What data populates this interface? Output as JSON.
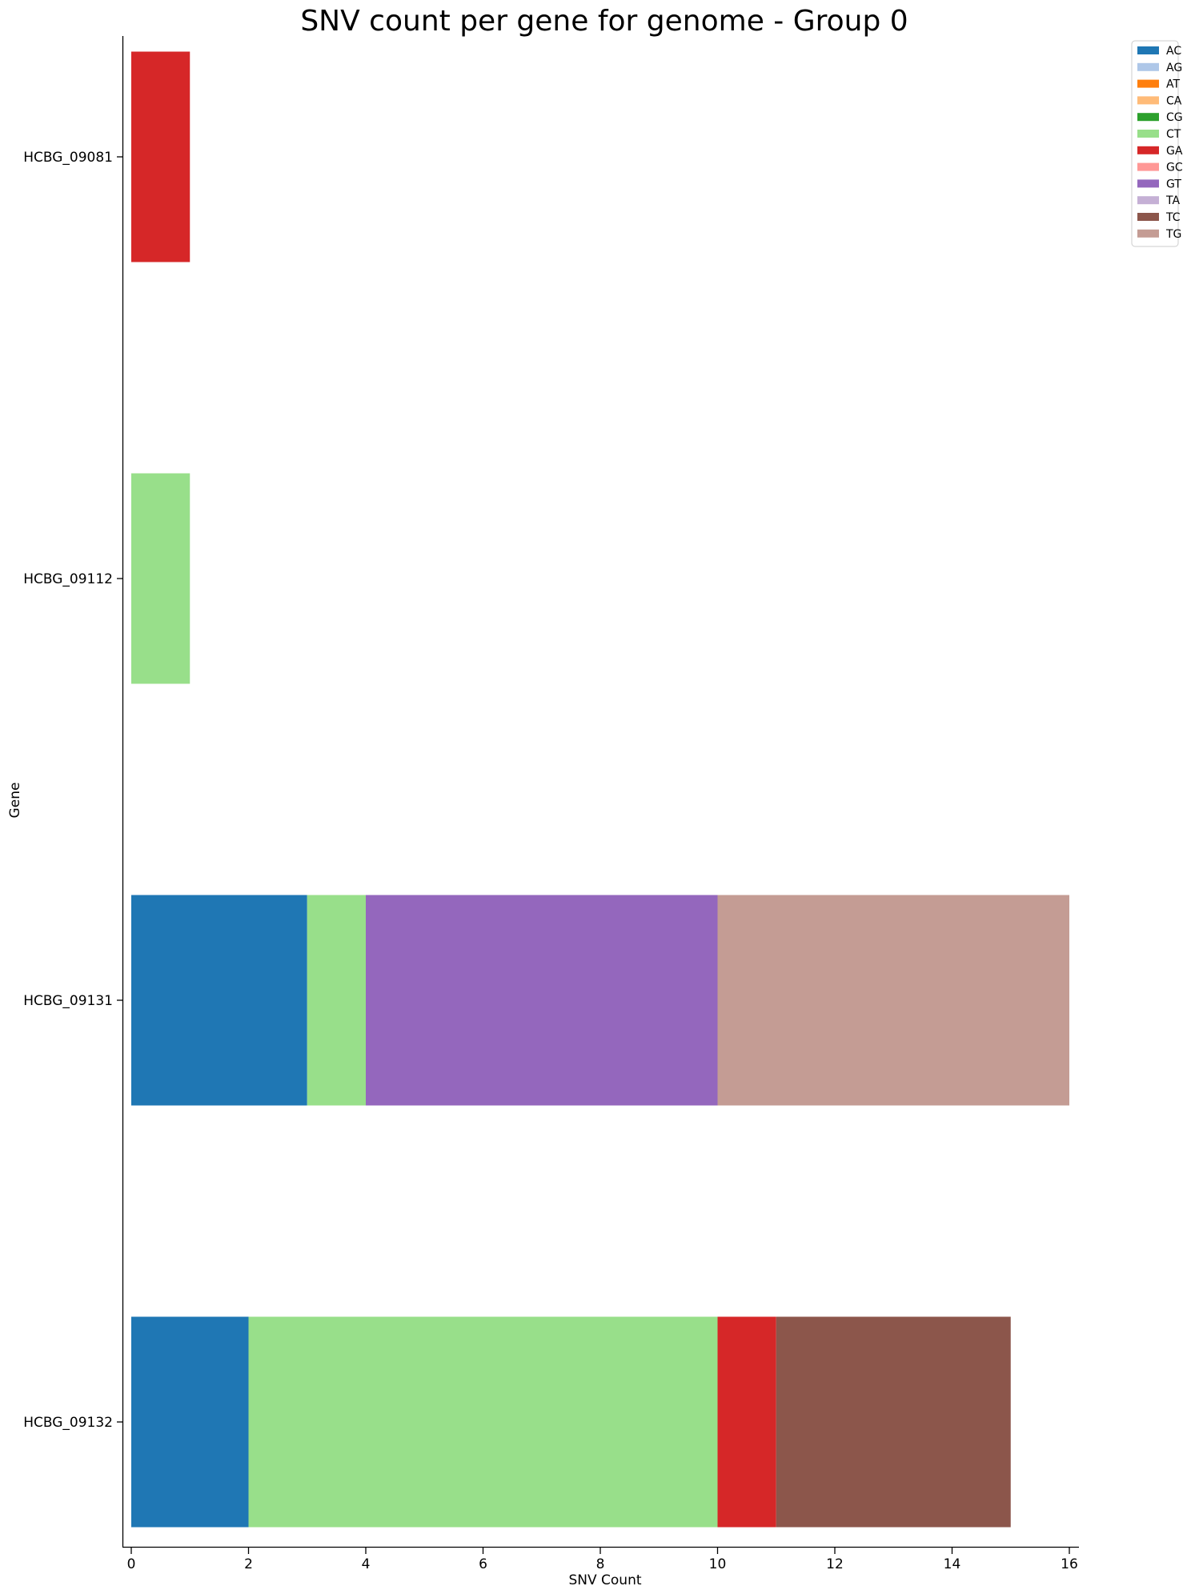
{
  "chart_data": {
    "type": "bar",
    "orientation": "horizontal",
    "stacked": true,
    "title": "SNV count per gene for genome - Group 0",
    "xlabel": "SNV Count",
    "ylabel": "Gene",
    "xlim": [
      0,
      16
    ],
    "xticks": [
      "0",
      "2",
      "4",
      "6",
      "8",
      "10",
      "12",
      "14",
      "16"
    ],
    "grid": false,
    "legend_position": "top-right, outside plot",
    "categories": [
      "HCBG_09081",
      "HCBG_09112",
      "HCBG_09131",
      "HCBG_09132"
    ],
    "series": [
      {
        "name": "AC",
        "color": "#1f77b4",
        "values": [
          0,
          0,
          3,
          2
        ]
      },
      {
        "name": "AG",
        "color": "#aec7e8",
        "values": [
          0,
          0,
          0,
          0
        ]
      },
      {
        "name": "AT",
        "color": "#ff7f0e",
        "values": [
          0,
          0,
          0,
          0
        ]
      },
      {
        "name": "CA",
        "color": "#ffbb78",
        "values": [
          0,
          0,
          0,
          0
        ]
      },
      {
        "name": "CG",
        "color": "#2ca02c",
        "values": [
          0,
          0,
          0,
          0
        ]
      },
      {
        "name": "CT",
        "color": "#98df8a",
        "values": [
          0,
          1,
          1,
          8
        ]
      },
      {
        "name": "GA",
        "color": "#d62728",
        "values": [
          1,
          0,
          0,
          1
        ]
      },
      {
        "name": "GC",
        "color": "#ff9896",
        "values": [
          0,
          0,
          0,
          0
        ]
      },
      {
        "name": "GT",
        "color": "#9467bd",
        "values": [
          0,
          0,
          6,
          0
        ]
      },
      {
        "name": "TA",
        "color": "#c5b0d5",
        "values": [
          0,
          0,
          0,
          0
        ]
      },
      {
        "name": "TC",
        "color": "#8c564b",
        "values": [
          0,
          0,
          0,
          4
        ]
      },
      {
        "name": "TG",
        "color": "#c49c94",
        "values": [
          0,
          0,
          6,
          0
        ]
      }
    ]
  }
}
